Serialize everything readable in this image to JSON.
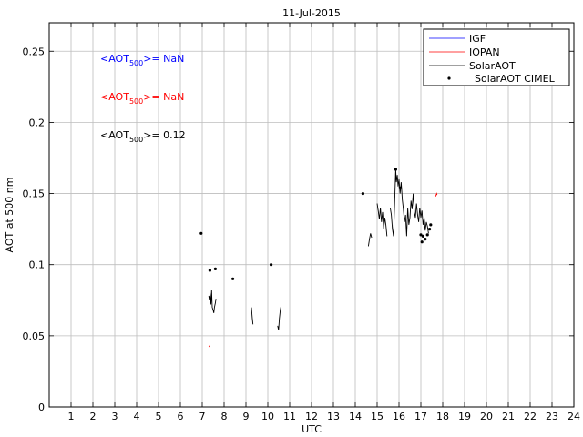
{
  "chart_data": {
    "type": "line",
    "title": "11-Jul-2015",
    "xlabel": "UTC",
    "ylabel": "AOT at 500 nm",
    "xlim": [
      0,
      24
    ],
    "ylim": [
      0,
      0.27
    ],
    "xticks": [
      1,
      2,
      3,
      4,
      5,
      6,
      7,
      8,
      9,
      10,
      11,
      12,
      13,
      14,
      15,
      16,
      17,
      18,
      19,
      20,
      21,
      22,
      23,
      24
    ],
    "yticks": [
      0,
      0.05,
      0.1,
      0.15,
      0.2,
      0.25
    ],
    "ytick_labels": [
      "0",
      "0.05",
      "0.1",
      "0.15",
      "0.2",
      "0.25"
    ],
    "grid": true,
    "legend_position": "top-right",
    "legend": [
      "IGF",
      "IOPAN",
      "SolarAOT",
      "SolarAOT CIMEL"
    ],
    "annotations": [
      {
        "pre": "<AOT",
        "sub": "500",
        "post": ">=  NaN",
        "color": "#0000ff"
      },
      {
        "pre": "<AOT",
        "sub": "500",
        "post": ">=  NaN",
        "color": "#ff0000"
      },
      {
        "pre": "<AOT",
        "sub": "500",
        "post": ">= 0.12",
        "color": "#000000"
      }
    ],
    "series": [
      {
        "name": "IGF",
        "color": "#0000ff",
        "style": "line",
        "segments": []
      },
      {
        "name": "IOPAN",
        "color": "#ff0000",
        "style": "line",
        "segments": [
          [
            [
              7.3,
              0.043
            ],
            [
              7.36,
              0.042
            ]
          ],
          [
            [
              17.68,
              0.148
            ],
            [
              17.72,
              0.15
            ],
            [
              17.74,
              0.149
            ]
          ]
        ]
      },
      {
        "name": "SolarAOT",
        "color": "#000000",
        "style": "line",
        "segments": [
          [
            [
              7.3,
              0.078
            ],
            [
              7.33,
              0.075
            ],
            [
              7.36,
              0.08
            ],
            [
              7.4,
              0.072
            ],
            [
              7.43,
              0.082
            ],
            [
              7.46,
              0.07
            ],
            [
              7.5,
              0.068
            ],
            [
              7.53,
              0.066
            ],
            [
              7.56,
              0.07
            ],
            [
              7.6,
              0.073
            ],
            [
              7.63,
              0.076
            ]
          ],
          [
            [
              9.25,
              0.07
            ],
            [
              9.29,
              0.062
            ],
            [
              9.32,
              0.058
            ]
          ],
          [
            [
              10.45,
              0.057
            ],
            [
              10.49,
              0.054
            ],
            [
              10.53,
              0.062
            ],
            [
              10.57,
              0.068
            ],
            [
              10.61,
              0.071
            ]
          ],
          [
            [
              14.6,
              0.113
            ],
            [
              14.65,
              0.118
            ],
            [
              14.7,
              0.122
            ],
            [
              14.75,
              0.119
            ]
          ],
          [
            [
              15.0,
              0.143
            ],
            [
              15.05,
              0.138
            ],
            [
              15.1,
              0.132
            ],
            [
              15.15,
              0.14
            ],
            [
              15.2,
              0.13
            ],
            [
              15.25,
              0.137
            ],
            [
              15.3,
              0.125
            ],
            [
              15.35,
              0.133
            ],
            [
              15.4,
              0.128
            ],
            [
              15.45,
              0.12
            ]
          ],
          [
            [
              15.6,
              0.14
            ],
            [
              15.65,
              0.135
            ],
            [
              15.7,
              0.125
            ],
            [
              15.75,
              0.12
            ],
            [
              15.8,
              0.143
            ],
            [
              15.85,
              0.167
            ],
            [
              15.88,
              0.158
            ],
            [
              15.92,
              0.163
            ],
            [
              15.96,
              0.155
            ],
            [
              16.0,
              0.16
            ],
            [
              16.05,
              0.15
            ],
            [
              16.1,
              0.158
            ],
            [
              16.15,
              0.146
            ],
            [
              16.2,
              0.139
            ],
            [
              16.25,
              0.13
            ],
            [
              16.3,
              0.135
            ],
            [
              16.35,
              0.12
            ],
            [
              16.4,
              0.14
            ],
            [
              16.45,
              0.128
            ],
            [
              16.5,
              0.133
            ],
            [
              16.55,
              0.145
            ],
            [
              16.6,
              0.139
            ],
            [
              16.65,
              0.15
            ],
            [
              16.7,
              0.137
            ],
            [
              16.75,
              0.133
            ],
            [
              16.8,
              0.143
            ],
            [
              16.85,
              0.135
            ],
            [
              16.9,
              0.13
            ],
            [
              16.95,
              0.14
            ],
            [
              17.0,
              0.133
            ],
            [
              17.05,
              0.138
            ],
            [
              17.1,
              0.128
            ],
            [
              17.15,
              0.133
            ],
            [
              17.2,
              0.124
            ],
            [
              17.25,
              0.13
            ],
            [
              17.3,
              0.127
            ],
            [
              17.35,
              0.122
            ]
          ]
        ]
      },
      {
        "name": "SolarAOT CIMEL",
        "color": "#000000",
        "style": "points",
        "points": [
          [
            6.95,
            0.122
          ],
          [
            7.35,
            0.096
          ],
          [
            7.6,
            0.097
          ],
          [
            8.4,
            0.09
          ],
          [
            10.15,
            0.1
          ],
          [
            14.35,
            0.15
          ],
          [
            15.85,
            0.167
          ],
          [
            16.05,
            0.154
          ],
          [
            17.0,
            0.121
          ],
          [
            17.05,
            0.116
          ],
          [
            17.1,
            0.12
          ],
          [
            17.2,
            0.118
          ],
          [
            17.3,
            0.121
          ],
          [
            17.4,
            0.125
          ],
          [
            17.45,
            0.128
          ]
        ]
      }
    ]
  }
}
